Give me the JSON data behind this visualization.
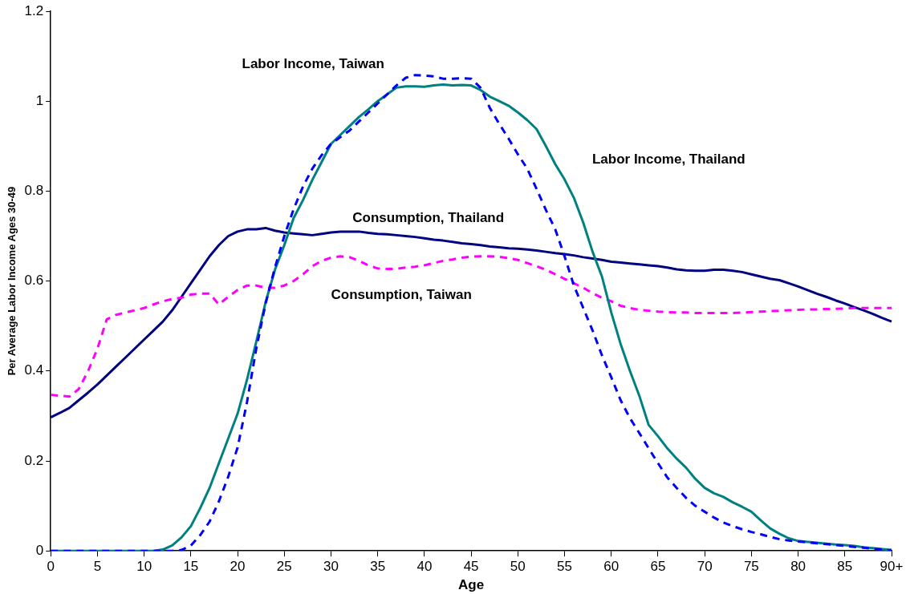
{
  "chart_data": {
    "type": "line",
    "xlabel": "Age",
    "ylabel": "Per Average Labor Income Ages 30-49",
    "categories": [
      "0",
      null,
      null,
      null,
      null,
      "5",
      null,
      null,
      null,
      null,
      "10",
      null,
      null,
      null,
      null,
      "15",
      null,
      null,
      null,
      null,
      "20",
      null,
      null,
      null,
      null,
      "25",
      null,
      null,
      null,
      null,
      "30",
      null,
      null,
      null,
      null,
      "35",
      null,
      null,
      null,
      null,
      "40",
      null,
      null,
      null,
      null,
      "45",
      null,
      null,
      null,
      null,
      "50",
      null,
      null,
      null,
      null,
      "55",
      null,
      null,
      null,
      null,
      "60",
      null,
      null,
      null,
      null,
      "65",
      null,
      null,
      null,
      null,
      "70",
      null,
      null,
      null,
      null,
      "75",
      null,
      null,
      null,
      null,
      "80",
      null,
      null,
      null,
      null,
      "85",
      null,
      null,
      null,
      null,
      "90+"
    ],
    "ylim": [
      0,
      1.2
    ],
    "yticks": [
      0,
      0.2,
      0.4,
      0.6,
      0.8,
      1,
      1.2
    ],
    "grid": false,
    "legend": false,
    "marker": "none",
    "series": [
      {
        "name": "Consumption, Thailand",
        "color": "#000080",
        "line_style": "solid",
        "values": [
          0.297,
          0.307,
          0.318,
          0.335,
          0.352,
          0.37,
          0.39,
          0.41,
          0.43,
          0.45,
          0.47,
          0.49,
          0.51,
          0.535,
          0.565,
          0.595,
          0.625,
          0.655,
          0.68,
          0.7,
          0.71,
          0.715,
          0.715,
          0.718,
          0.712,
          0.708,
          0.706,
          0.704,
          0.702,
          0.705,
          0.708,
          0.71,
          0.71,
          0.71,
          0.707,
          0.705,
          0.704,
          0.702,
          0.7,
          0.698,
          0.695,
          0.692,
          0.69,
          0.687,
          0.684,
          0.682,
          0.68,
          0.677,
          0.675,
          0.673,
          0.672,
          0.67,
          0.668,
          0.665,
          0.662,
          0.66,
          0.657,
          0.653,
          0.65,
          0.647,
          0.643,
          0.641,
          0.639,
          0.637,
          0.635,
          0.633,
          0.63,
          0.626,
          0.624,
          0.623,
          0.623,
          0.625,
          0.625,
          0.623,
          0.62,
          0.615,
          0.61,
          0.605,
          0.602,
          0.595,
          0.588,
          0.58,
          0.572,
          0.565,
          0.557,
          0.55,
          0.542,
          0.535,
          0.527,
          0.518,
          0.51
        ]
      },
      {
        "name": "Consumption, Taiwan",
        "color": "#ff00ff",
        "line_style": "dashed",
        "values": [
          0.347,
          0.345,
          0.343,
          0.36,
          0.4,
          0.45,
          0.515,
          0.525,
          0.53,
          0.535,
          0.54,
          0.548,
          0.555,
          0.56,
          0.563,
          0.57,
          0.572,
          0.572,
          0.548,
          0.565,
          0.58,
          0.59,
          0.59,
          0.585,
          0.585,
          0.59,
          0.6,
          0.615,
          0.633,
          0.645,
          0.652,
          0.655,
          0.653,
          0.645,
          0.635,
          0.628,
          0.627,
          0.627,
          0.63,
          0.632,
          0.635,
          0.64,
          0.645,
          0.648,
          0.652,
          0.654,
          0.655,
          0.655,
          0.654,
          0.651,
          0.647,
          0.64,
          0.633,
          0.625,
          0.615,
          0.605,
          0.595,
          0.585,
          0.573,
          0.563,
          0.555,
          0.545,
          0.54,
          0.536,
          0.534,
          0.532,
          0.531,
          0.53,
          0.53,
          0.529,
          0.529,
          0.529,
          0.529,
          0.529,
          0.53,
          0.531,
          0.532,
          0.533,
          0.534,
          0.535,
          0.536,
          0.537,
          0.537,
          0.538,
          0.538,
          0.539,
          0.54,
          0.54,
          0.54,
          0.54,
          0.54
        ]
      },
      {
        "name": "Labor Income, Thailand",
        "color": "#008080",
        "line_style": "solid",
        "values": [
          0,
          0,
          0,
          0,
          0,
          0,
          0,
          0,
          0,
          0,
          0,
          0,
          0.003,
          0.012,
          0.03,
          0.055,
          0.095,
          0.14,
          0.195,
          0.25,
          0.305,
          0.38,
          0.465,
          0.553,
          0.625,
          0.68,
          0.74,
          0.78,
          0.825,
          0.865,
          0.905,
          0.925,
          0.945,
          0.965,
          0.982,
          1.0,
          1.015,
          1.03,
          1.033,
          1.033,
          1.032,
          1.035,
          1.037,
          1.035,
          1.036,
          1.035,
          1.025,
          1.01,
          1.0,
          0.99,
          0.975,
          0.958,
          0.938,
          0.9,
          0.86,
          0.826,
          0.785,
          0.73,
          0.665,
          0.61,
          0.53,
          0.46,
          0.4,
          0.345,
          0.28,
          0.255,
          0.228,
          0.205,
          0.185,
          0.16,
          0.14,
          0.128,
          0.12,
          0.108,
          0.098,
          0.087,
          0.068,
          0.05,
          0.038,
          0.028,
          0.022,
          0.02,
          0.018,
          0.016,
          0.014,
          0.013,
          0.011,
          0.008,
          0.006,
          0.004,
          0.002
        ]
      },
      {
        "name": "Labor Income, Taiwan",
        "color": "#0000ff",
        "line_style": "dashed",
        "values": [
          0,
          0,
          0,
          0,
          0,
          0,
          0,
          0,
          0,
          0,
          0,
          0,
          0,
          0,
          0.002,
          0.012,
          0.035,
          0.065,
          0.11,
          0.165,
          0.23,
          0.33,
          0.45,
          0.55,
          0.63,
          0.7,
          0.76,
          0.81,
          0.85,
          0.88,
          0.905,
          0.92,
          0.935,
          0.955,
          0.975,
          0.995,
          1.015,
          1.035,
          1.052,
          1.058,
          1.057,
          1.055,
          1.05,
          1.05,
          1.051,
          1.05,
          1.03,
          0.985,
          0.95,
          0.917,
          0.882,
          0.85,
          0.805,
          0.758,
          0.715,
          0.655,
          0.59,
          0.54,
          0.49,
          0.435,
          0.386,
          0.335,
          0.295,
          0.262,
          0.228,
          0.195,
          0.163,
          0.14,
          0.118,
          0.1,
          0.087,
          0.074,
          0.063,
          0.055,
          0.048,
          0.042,
          0.037,
          0.031,
          0.026,
          0.023,
          0.021,
          0.019,
          0.017,
          0.015,
          0.013,
          0.011,
          0.009,
          0.007,
          0.005,
          0.003,
          0.001
        ]
      }
    ]
  }
}
